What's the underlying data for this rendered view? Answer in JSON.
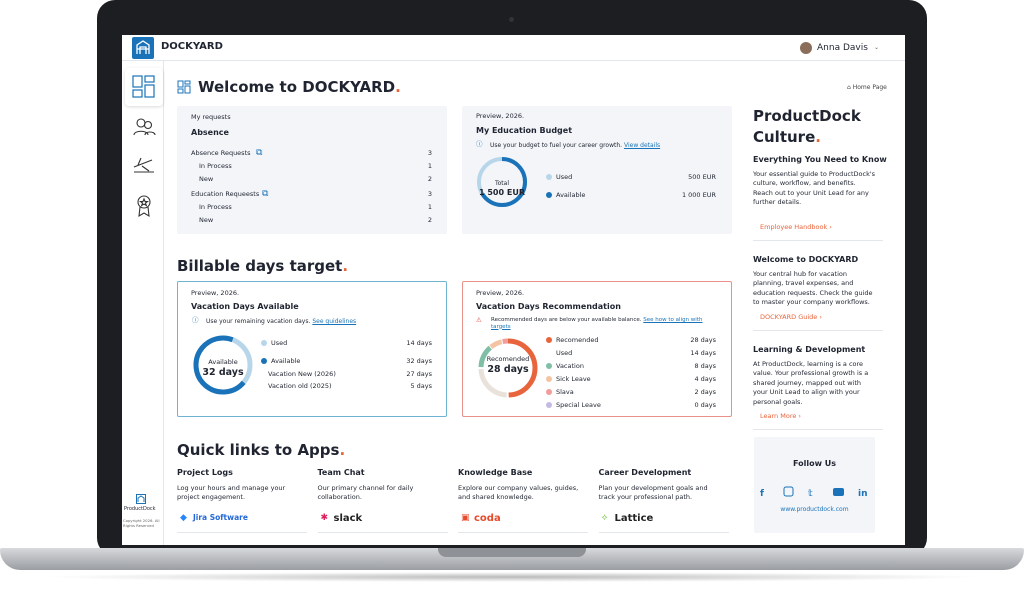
{
  "header": {
    "brand": "DOCKYARD",
    "user": "Anna Davis"
  },
  "sidebar": {
    "footer_brand": "ProductDock",
    "copyright": "Copyright 2026. All Rights Reserved"
  },
  "main": {
    "title": "Welcome to DOCKYARD",
    "accent": ".",
    "breadcrumb": "Home Page",
    "requests": {
      "label": "My requests",
      "title": "Absence",
      "groups": [
        {
          "label": "Absence Requests",
          "value": "3",
          "items": [
            {
              "label": "In Process",
              "value": "1"
            },
            {
              "label": "New",
              "value": "2"
            }
          ]
        },
        {
          "label": "Education Requeests",
          "value": "3",
          "items": [
            {
              "label": "In Process",
              "value": "1"
            },
            {
              "label": "New",
              "value": "2"
            }
          ]
        }
      ]
    },
    "budget": {
      "preview": "Preview, 2026.",
      "title": "My Education Budget",
      "note": "Use your budget to fuel your career growth.",
      "link": "View details",
      "center_label": "Total",
      "center_value": "1 500 EUR",
      "rows": [
        {
          "label": "Used",
          "value": "500 EUR"
        },
        {
          "label": "Available",
          "value": "1 000 EUR"
        }
      ]
    },
    "billable_title": "Billable days target",
    "vacation": {
      "preview": "Preview, 2026.",
      "title": "Vacation Days Available",
      "note": "Use your remaining vacation days.",
      "link": "See guidelines",
      "center_label": "Available",
      "center_value": "32 days",
      "rows": [
        {
          "label": "Used",
          "value": "14 days"
        },
        {
          "label": "Available",
          "value": "32 days"
        },
        {
          "label": "Vacation New (2026)",
          "value": "27 days"
        },
        {
          "label": "Vacation old (2025)",
          "value": "5 days"
        }
      ]
    },
    "recommendation": {
      "preview": "Preview, 2026.",
      "title": "Vacation Days Recommendation",
      "note": "Recommended days are below your available balance.",
      "link": "See how to align with targets",
      "center_label": "Recomended",
      "center_value": "28 days",
      "rows": [
        {
          "label": "Recomended",
          "value": "28 days"
        },
        {
          "label": "Used",
          "value": "14 days"
        },
        {
          "label": "Vacation",
          "value": "8 days"
        },
        {
          "label": "Sick Leave",
          "value": "4 days"
        },
        {
          "label": "Slava",
          "value": "2 days"
        },
        {
          "label": "Special Leave",
          "value": "0 days"
        }
      ]
    },
    "quick_links_title": "Quick links to Apps",
    "apps": [
      {
        "title": "Project Logs",
        "text": "Log your hours and manage your project engagement.",
        "logo": "Jira Software"
      },
      {
        "title": "Team Chat",
        "text": "Our primary channel for daily collaboration.",
        "logo": "slack"
      },
      {
        "title": "Knowledge Base",
        "text": "Explore our company values, guides, and shared knowledge.",
        "logo": "coda"
      },
      {
        "title": "Career Development",
        "text": "Plan your development goals and track your professional path.",
        "logo": "Lattice"
      }
    ]
  },
  "panel": {
    "title": "ProductDock Culture",
    "accent": ".",
    "sections": [
      {
        "heading": "Everything You Need to Know",
        "text": "Your essential guide to ProductDock's culture, workflow, and benefits. Reach out to your Unit Lead for any further details.",
        "link": "Employee Handbook"
      },
      {
        "heading": "Welcome to DOCKYARD",
        "text": "Your central hub for vacation planning, travel expenses, and education requests. Check the guide to master your company workflows.",
        "link": "DOCKYARD Guide"
      },
      {
        "heading": "Learning & Development",
        "text": "At ProductDock, learning is a core value. Your professional growth is a shared journey, mapped out with your Unit Lead to align with your personal goals.",
        "link": "Learn More"
      }
    ],
    "follow_title": "Follow Us",
    "url": "www.productdock.com"
  }
}
